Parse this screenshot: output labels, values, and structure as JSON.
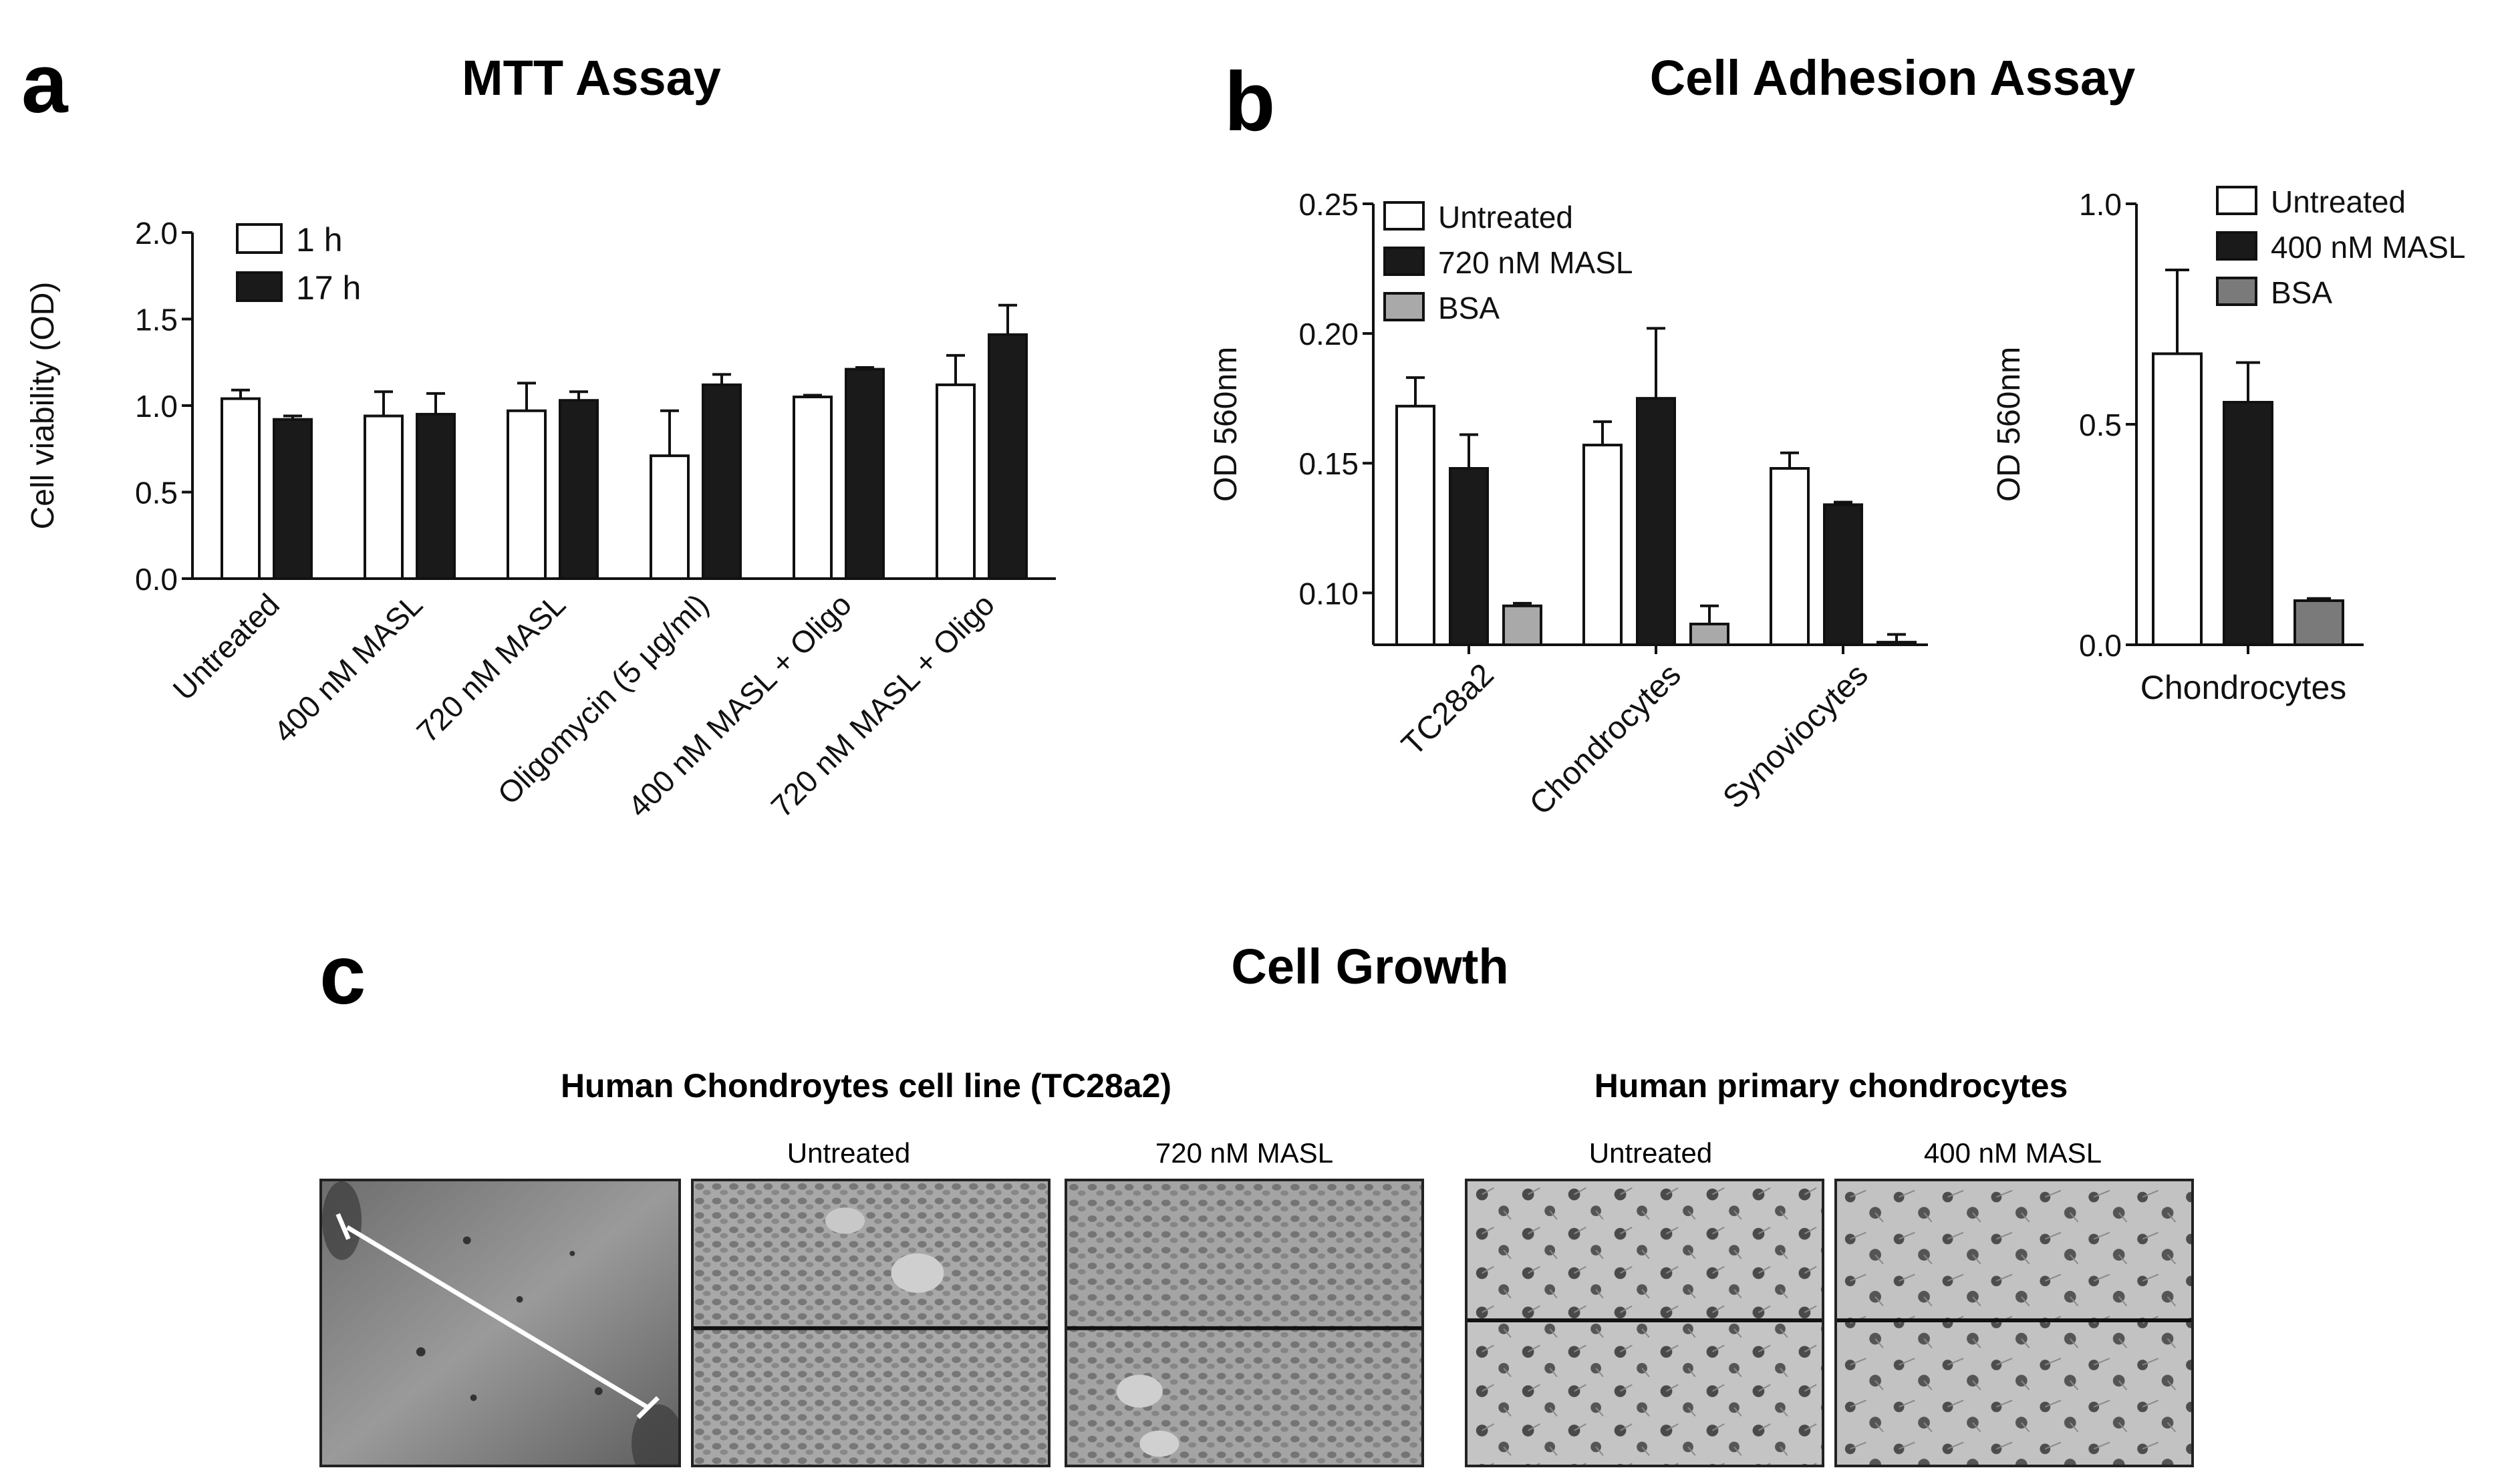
{
  "panel_labels": {
    "a": "a",
    "b": "b",
    "c": "c"
  },
  "colors": {
    "untreated": "#ffffff",
    "dark": "#1a1a1a",
    "bsa_b1": "#a9a9a9",
    "bsa_b2": "#7a7a7a",
    "axis": "#111111"
  },
  "chart_data": [
    {
      "id": "mtt",
      "type": "bar",
      "title": "MTT Assay",
      "ylabel": "Cell viability (OD)",
      "xlabel": "",
      "ylim": [
        0,
        2.0
      ],
      "yticks": [
        "0.0",
        "0.5",
        "1.0",
        "1.5",
        "2.0"
      ],
      "ytick_values": [
        0,
        0.5,
        1.0,
        1.5,
        2.0
      ],
      "categories": [
        "Untreated",
        "400 nM MASL",
        "720 nM MASL",
        "Oligomycin (5 μg/ml)",
        "400 nM MASL  + Oligo",
        "720 nM MASL + Oligo"
      ],
      "legend_position": "top-left",
      "series": [
        {
          "name": "1 h",
          "values": [
            1.04,
            0.94,
            0.97,
            0.71,
            1.05,
            1.12
          ],
          "errors": [
            0.05,
            0.14,
            0.16,
            0.26,
            0.01,
            0.17
          ]
        },
        {
          "name": "17 h",
          "values": [
            0.92,
            0.95,
            1.03,
            1.12,
            1.21,
            1.41
          ],
          "errors": [
            0.02,
            0.12,
            0.05,
            0.06,
            0.01,
            0.17
          ]
        }
      ]
    },
    {
      "id": "adhesion1",
      "type": "bar",
      "title": "Cell Adhesion Assay",
      "ylabel": "OD 560nm",
      "xlabel": "",
      "ylim": [
        0.08,
        0.25
      ],
      "yticks": [
        "0.10",
        "0.15",
        "0.20",
        "0.25"
      ],
      "ytick_values": [
        0.1,
        0.15,
        0.2,
        0.25
      ],
      "categories": [
        "TC28a2",
        "Chondrocytes",
        "Synoviocytes"
      ],
      "legend_position": "top-left",
      "series": [
        {
          "name": "Untreated",
          "values": [
            0.172,
            0.157,
            0.148
          ],
          "errors": [
            0.011,
            0.009,
            0.006
          ]
        },
        {
          "name": "720 nM MASL",
          "values": [
            0.148,
            0.175,
            0.134
          ],
          "errors": [
            0.013,
            0.027,
            0.001
          ]
        },
        {
          "name": "BSA",
          "values": [
            0.095,
            0.088,
            0.081
          ],
          "errors": [
            0.001,
            0.007,
            0.003
          ]
        }
      ]
    },
    {
      "id": "adhesion2",
      "type": "bar",
      "title": "",
      "ylabel": "OD 560nm",
      "xlabel": "Chondrocytes",
      "ylim": [
        0,
        1.0
      ],
      "yticks": [
        "0.0",
        "0.5",
        "1.0"
      ],
      "ytick_values": [
        0,
        0.5,
        1.0
      ],
      "categories": [
        "Chondrocytes"
      ],
      "legend_position": "top-right",
      "series": [
        {
          "name": "Untreated",
          "values": [
            0.66
          ],
          "errors": [
            0.19
          ]
        },
        {
          "name": "400 nM MASL",
          "values": [
            0.55
          ],
          "errors": [
            0.09
          ]
        },
        {
          "name": "BSA",
          "values": [
            0.1
          ],
          "errors": [
            0.005
          ]
        }
      ]
    }
  ],
  "growth": {
    "title": "Cell Growth",
    "group1_title": "Human Chondroytes cell line (TC28a2)",
    "group2_title": "Human primary chondrocytes",
    "panels": [
      "Untreated",
      "720 nM MASL",
      "Untreated",
      "400 nM MASL"
    ]
  }
}
